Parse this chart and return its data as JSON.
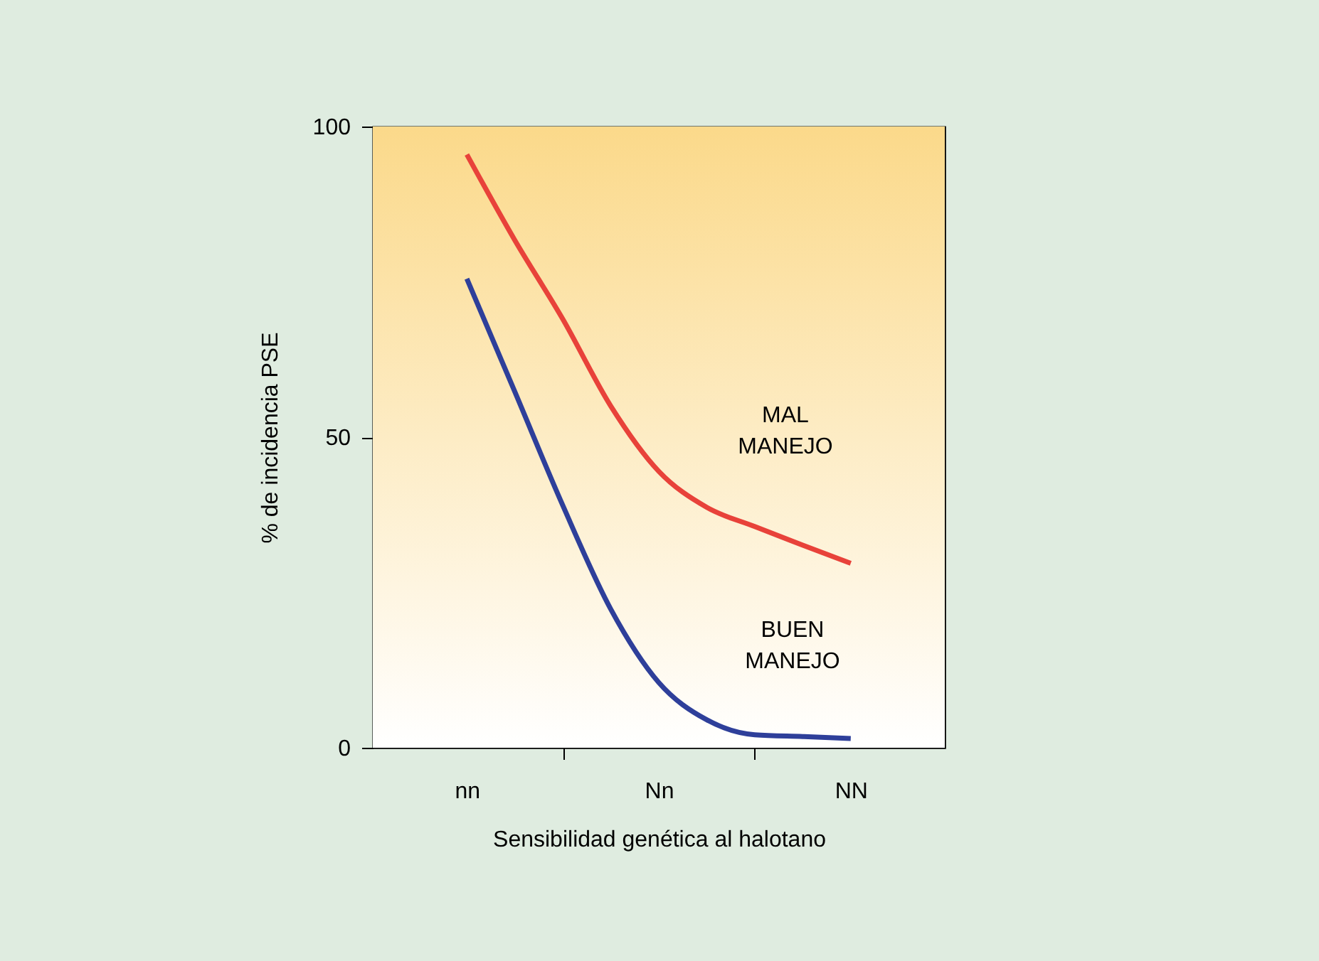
{
  "chart_data": {
    "type": "line",
    "xlabel": "Sensibilidad genética al halotano",
    "ylabel": "% de incidencia PSE",
    "categories": [
      "nn",
      null,
      null,
      null,
      "Nn",
      null,
      null,
      null,
      "NN"
    ],
    "ylim": [
      0,
      100
    ],
    "yticks": [
      0,
      50,
      100
    ],
    "grid": false,
    "marker": "none",
    "line_style": "solid",
    "series": [
      {
        "color": "#e8423a",
        "values": [
          95.5,
          81.7,
          69,
          55,
          44.5,
          38.7,
          35.6,
          32.6,
          29.7
        ]
      },
      {
        "color": "#2e3f9a",
        "values": [
          75.5,
          57.3,
          39,
          22.3,
          10.5,
          4.5,
          2.1,
          1.8,
          1.5
        ]
      }
    ],
    "annotations": [
      "MAL\nMANEJO",
      "BUEN\nMANEJO"
    ]
  }
}
